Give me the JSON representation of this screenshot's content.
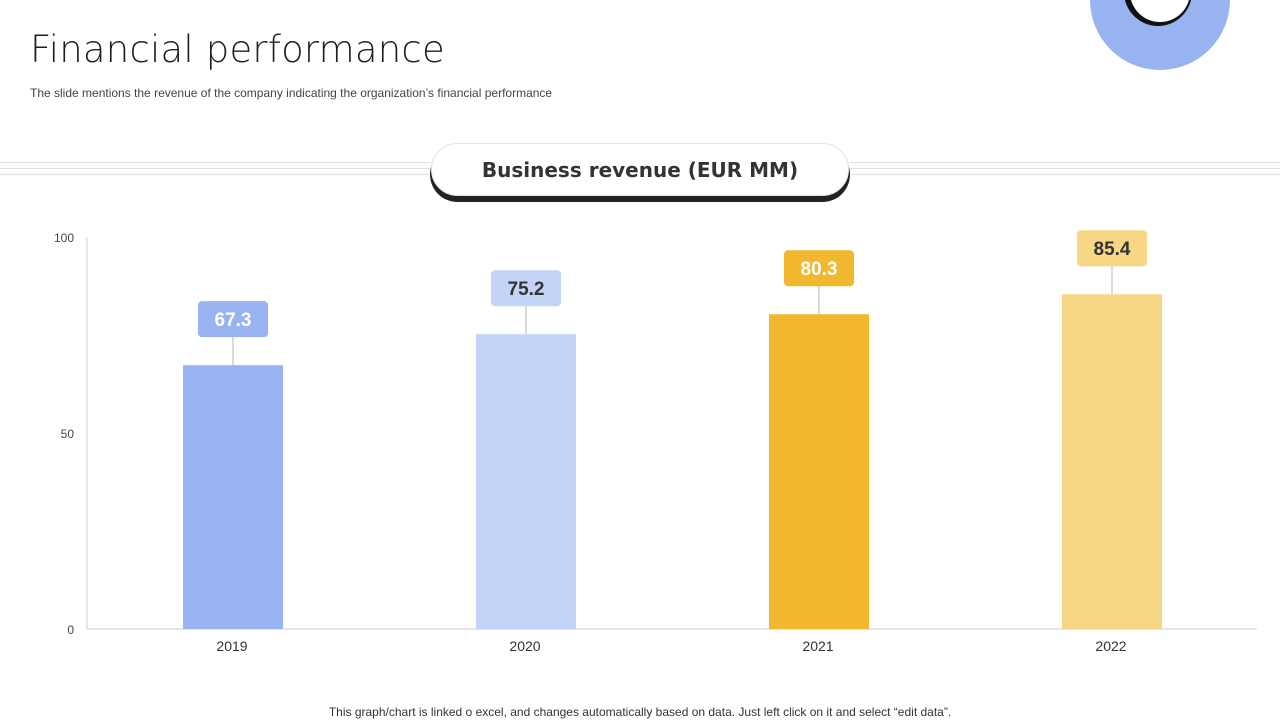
{
  "page": {
    "title": "Financial performance",
    "subtitle": "The slide mentions the revenue of the company indicating the organization’s financial performance",
    "footnote": "This graph/chart is linked o excel, and changes automatically based on data. Just left click on it and select “edit data”."
  },
  "colors": {
    "bar_2019": "#97b4f1",
    "bar_2020": "#c3d4f8",
    "bar_2021": "#f2b82f",
    "bar_2022": "#f7d684",
    "decor_ring": "#97b4f1"
  },
  "chart_data": {
    "type": "bar",
    "title": "Business revenue (EUR MM)",
    "categories": [
      "2019",
      "2020",
      "2021",
      "2022"
    ],
    "values": [
      67.3,
      75.2,
      80.3,
      85.4
    ],
    "value_labels": [
      "67.3",
      "75.2",
      "80.3",
      "85.4"
    ],
    "yticks": [
      "0",
      "50",
      "100"
    ],
    "ytick_values": [
      0,
      50,
      100
    ],
    "ylim": [
      0,
      100
    ],
    "xlabel": "",
    "ylabel": "",
    "grid": false,
    "legend": "none"
  }
}
